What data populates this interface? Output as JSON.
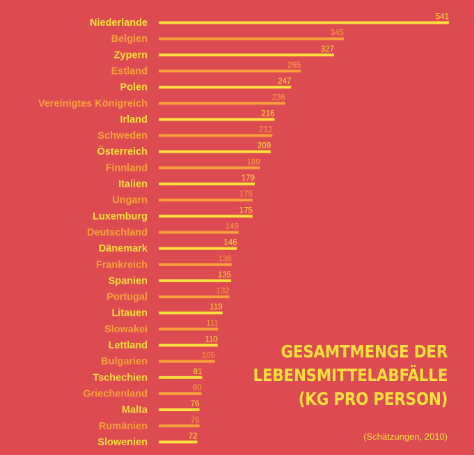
{
  "chart_data": {
    "type": "bar",
    "orientation": "horizontal",
    "title_lines": [
      "GESAMTMENGE DER",
      "LEBENSMITTELABFÄLLE",
      "(KG PRO PERSON)"
    ],
    "subtitle": "(Schätzungen, 2010)",
    "categories": [
      "Niederlande",
      "Belgien",
      "Zypern",
      "Estland",
      "Polen",
      "Vereinigtes Königreich",
      "Irland",
      "Schweden",
      "Österreich",
      "Finnland",
      "Italien",
      "Ungarn",
      "Luxemburg",
      "Deutschland",
      "Dänemark",
      "Frankreich",
      "Spanien",
      "Portugal",
      "Litauen",
      "Slowakei",
      "Lettland",
      "Bulgarien",
      "Tschechien",
      "Griechenland",
      "Malta",
      "Rumänien",
      "Slowenien"
    ],
    "values": [
      541,
      345,
      327,
      265,
      247,
      236,
      216,
      212,
      209,
      189,
      179,
      175,
      175,
      149,
      146,
      136,
      135,
      132,
      119,
      111,
      110,
      105,
      81,
      80,
      76,
      76,
      72
    ],
    "colors": {
      "primary": "#fbe13b",
      "alternate": "#f7a13a",
      "background": "#de4a52"
    },
    "grid": false
  }
}
